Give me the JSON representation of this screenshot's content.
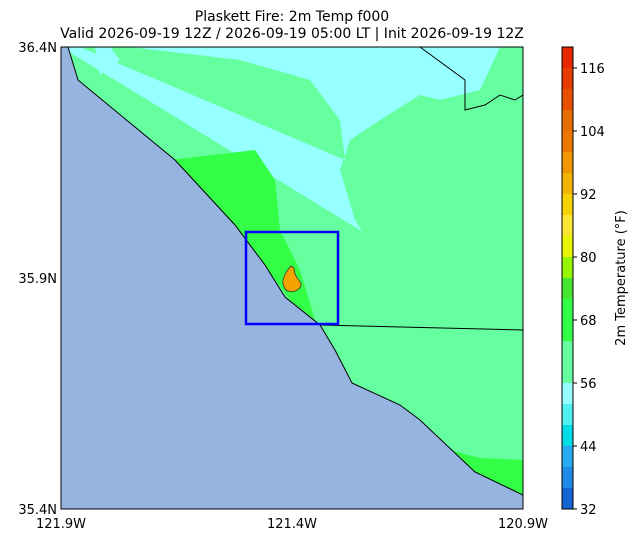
{
  "map": {
    "title": "Plaskett Fire: 2m Temp f000",
    "subtitle": "Valid 2026-09-19 12Z / 2026-09-19 05:00 LT | Init 2026-09-19 12Z",
    "lat_labels": [
      "36.4N",
      "35.9N",
      "35.4N"
    ],
    "lon_labels": [
      "121.9W",
      "121.4W",
      "120.9W"
    ]
  },
  "colorbar": {
    "label": "2m Temperature (°F)",
    "lim": [
      32,
      120
    ],
    "ticks": [
      32,
      44,
      56,
      68,
      80,
      92,
      104,
      116
    ],
    "levels": [
      32,
      36,
      40,
      44,
      48,
      52,
      56,
      60,
      64,
      68,
      72,
      76,
      80,
      84,
      88,
      92,
      96,
      100,
      104,
      108,
      112,
      116,
      120
    ],
    "colors": [
      "#1464d2",
      "#1e8ce6",
      "#28aaf0",
      "#00dce6",
      "#50f0f0",
      "#96ffff",
      "#66ffa0",
      "#66ffa0",
      "#32ff46",
      "#32ff46",
      "#46e632",
      "#96f500",
      "#e6f500",
      "#fae632",
      "#f5d200",
      "#f0b400",
      "#f09600",
      "#eb7800",
      "#e66e00",
      "#e65000",
      "#e63c00",
      "#e62800"
    ]
  }
}
